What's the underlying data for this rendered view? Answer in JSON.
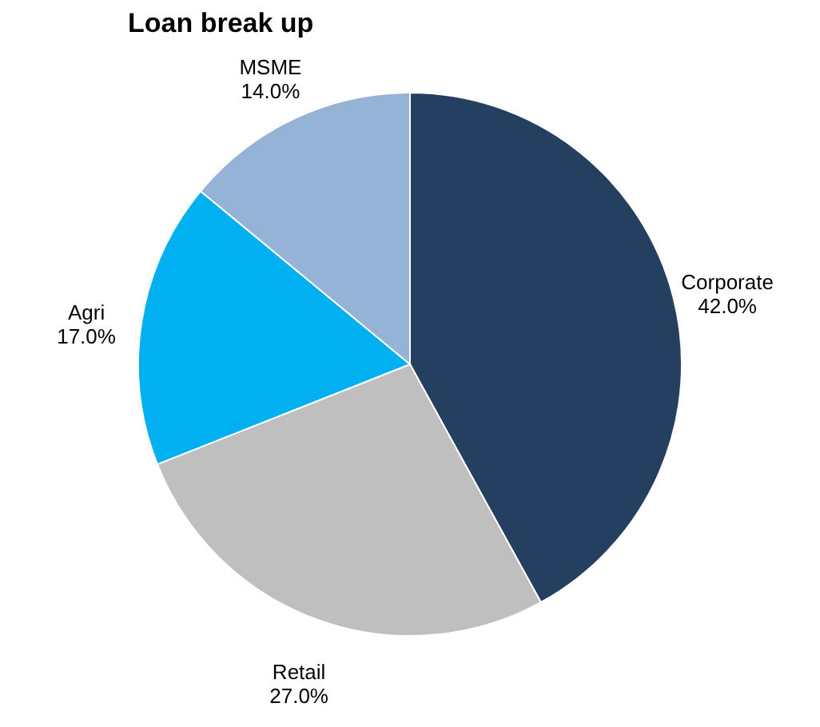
{
  "chart_data": {
    "type": "pie",
    "title": "Loan break up",
    "categories": [
      "Corporate",
      "Retail",
      "Agri",
      "MSME"
    ],
    "values": [
      42.0,
      27.0,
      17.0,
      14.0
    ],
    "colors": [
      "#243f60",
      "#bfbfbf",
      "#00b0f0",
      "#95b3d7"
    ],
    "value_labels": [
      "42.0%",
      "27.0%",
      "17.0%",
      "14.0%"
    ]
  }
}
